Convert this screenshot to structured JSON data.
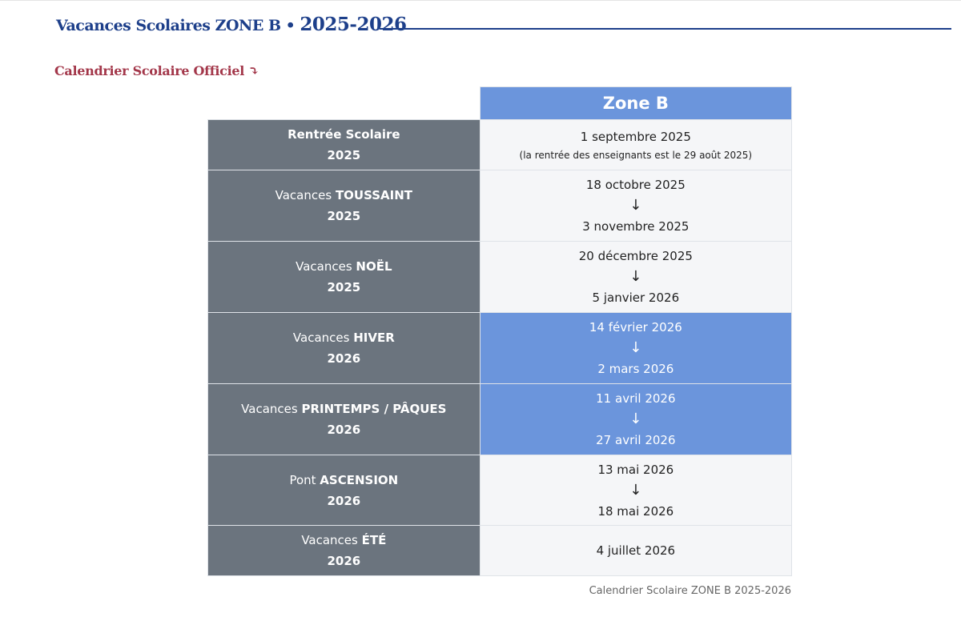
{
  "header": {
    "title": "Vacances Scolaires ZONE B •",
    "year": "2025-2026",
    "subtitle": "Calendrier Scolaire Officiel",
    "subtitle_icon": "arrow-turn-down-icon"
  },
  "table": {
    "column_header": "Zone B",
    "rows": [
      {
        "label_prefix": "",
        "label_bold": "Rentrée Scolaire",
        "year": "2025",
        "date": "1 septembre 2025",
        "note": "(la rentrée des enseignants est le 29 août 2025)",
        "highlight": false
      },
      {
        "label_prefix": "Vacances ",
        "label_bold": "TOUSSAINT",
        "year": "2025",
        "start": "18 octobre 2025",
        "end": "3 novembre 2025",
        "highlight": false
      },
      {
        "label_prefix": "Vacances ",
        "label_bold": "NOËL",
        "year": "2025",
        "start": "20 décembre 2025",
        "end": "5 janvier 2026",
        "highlight": false
      },
      {
        "label_prefix": "Vacances ",
        "label_bold": "HIVER",
        "year": "2026",
        "start": "14 février 2026",
        "end": "2 mars 2026",
        "highlight": true
      },
      {
        "label_prefix": "Vacances ",
        "label_bold": "PRINTEMPS / PÂQUES",
        "year": "2026",
        "start": "11 avril 2026",
        "end": "27 avril 2026",
        "highlight": true
      },
      {
        "label_prefix": "Pont ",
        "label_bold": "ASCENSION",
        "year": "2026",
        "start": "13 mai 2026",
        "end": "18 mai 2026",
        "highlight": false
      },
      {
        "label_prefix": "Vacances ",
        "label_bold": "ÉTÉ",
        "year": "2026",
        "date": "4 juillet 2026",
        "highlight": false
      }
    ],
    "arrow": "↓",
    "caption": "Calendrier Scolaire ZONE B 2025-2026",
    "colors": {
      "header": "#6b95dc",
      "label": "#6b747e"
    }
  }
}
